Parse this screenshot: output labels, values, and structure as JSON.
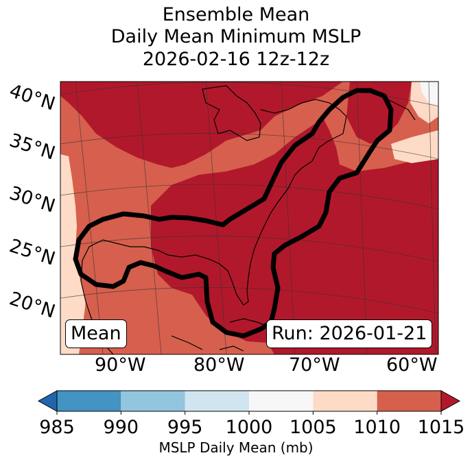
{
  "title": {
    "line1": "Ensemble Mean",
    "line2": "Daily Mean Minimum MSLP",
    "line3": "2026-02-16 12z-12z"
  },
  "map": {
    "lat_labels": [
      "40°N",
      "35°N",
      "30°N",
      "25°N",
      "20°N"
    ],
    "lon_labels": [
      "90°W",
      "80°W",
      "70°W",
      "60°W"
    ],
    "mean_label": "Mean",
    "run_label": "Run: 2026-01-21",
    "field_colors": {
      "1005-1010": "#fddbc7",
      "1010-1015": "#d6604d",
      "over-1015": "#b2182b",
      "1000-1005": "#f7f7f7"
    },
    "contour_color": "#000000"
  },
  "colorbar": {
    "label": "MSLP Daily Mean (mb)",
    "ticks": [
      "985",
      "990",
      "995",
      "1000",
      "1005",
      "1010",
      "1015"
    ],
    "colors": [
      "#2166ac",
      "#4393c3",
      "#92c5de",
      "#d1e5f0",
      "#f7f7f7",
      "#fddbc7",
      "#d6604d",
      "#b2182b"
    ]
  }
}
